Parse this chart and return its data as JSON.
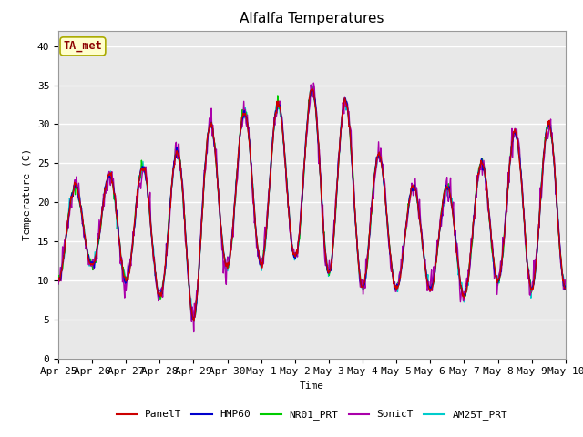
{
  "title": "Alfalfa Temperatures",
  "xlabel": "Time",
  "ylabel": "Temperature (C)",
  "ylim": [
    0,
    42
  ],
  "yticks": [
    0,
    5,
    10,
    15,
    20,
    25,
    30,
    35,
    40
  ],
  "annotation_text": "TA_met",
  "annotation_color": "#8b0000",
  "annotation_bg": "#ffffcc",
  "series": {
    "PanelT": {
      "color": "#cc0000",
      "lw": 1.0
    },
    "HMP60": {
      "color": "#0000cc",
      "lw": 1.0
    },
    "NR01_PRT": {
      "color": "#00cc00",
      "lw": 1.0
    },
    "SonicT": {
      "color": "#aa00aa",
      "lw": 1.0
    },
    "AM25T_PRT": {
      "color": "#00cccc",
      "lw": 1.0
    }
  },
  "plot_bg": "#e8e8e8",
  "fig_bg": "#ffffff",
  "n_points": 720,
  "n_days": 15,
  "x_tick_labels": [
    "Apr 25",
    "Apr 26",
    "Apr 27",
    "Apr 28",
    "Apr 29",
    "Apr 30",
    "May 1",
    "May 2",
    "May 3",
    "May 4",
    "May 5",
    "May 6",
    "May 7",
    "May 8",
    "May 9",
    "May 10"
  ],
  "title_fontsize": 11,
  "axis_fontsize": 8,
  "legend_fontsize": 8,
  "day_mins": [
    10,
    12,
    10,
    8,
    5,
    12,
    12,
    13,
    11,
    9,
    9,
    9,
    8,
    10,
    9
  ],
  "day_maxs": [
    22,
    22,
    25,
    24,
    29,
    31,
    32,
    33,
    36,
    30,
    22,
    22,
    22,
    28,
    30
  ]
}
